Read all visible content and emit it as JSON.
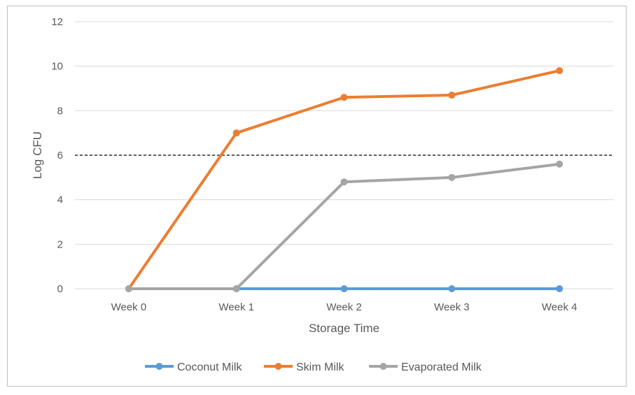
{
  "chart_data": {
    "type": "line",
    "categories": [
      "Week 0",
      "Week 1",
      "Week 2",
      "Week 3",
      "Week 4"
    ],
    "series": [
      {
        "name": "Coconut Milk",
        "color": "#5b9bd5",
        "values": [
          null,
          0,
          0,
          0,
          0
        ]
      },
      {
        "name": "Skim Milk",
        "color": "#ed7d31",
        "values": [
          0,
          7,
          8.6,
          8.7,
          9.8
        ]
      },
      {
        "name": "Evaporated Milk",
        "color": "#a5a5a5",
        "values": [
          0,
          0,
          4.8,
          5.0,
          5.6
        ]
      }
    ],
    "xlabel": "Storage Time",
    "ylabel": "Log CFU",
    "ylim": [
      0,
      12
    ],
    "yticks": [
      0,
      2,
      4,
      6,
      8,
      10,
      12
    ],
    "reference_line": {
      "y": 6,
      "style": "dashed",
      "color": "#000000"
    },
    "grid": true,
    "legend_position": "bottom"
  }
}
